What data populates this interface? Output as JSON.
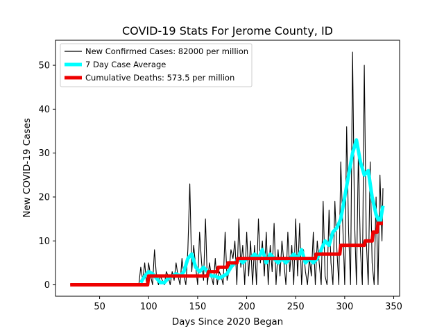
{
  "chart_data": {
    "type": "line",
    "title": "COVID-19 Stats For Jerome County, ID",
    "xlabel": "Days Since 2020 Began",
    "ylabel": "New COVID-19 Cases",
    "xlim": [
      5,
      356
    ],
    "ylim": [
      -2.6,
      55.7
    ],
    "xticks": [
      50,
      100,
      150,
      200,
      250,
      300,
      350
    ],
    "yticks": [
      0,
      10,
      20,
      30,
      40,
      50
    ],
    "grid": false,
    "legend_position": "top-left",
    "series": [
      {
        "name": "New Confirmed Cases: 82000 per million",
        "color": "#000000",
        "x": [
          20,
          40,
          60,
          80,
          90,
          92,
          94,
          96,
          98,
          100,
          102,
          104,
          106,
          108,
          110,
          112,
          114,
          116,
          118,
          120,
          122,
          124,
          126,
          128,
          130,
          132,
          134,
          136,
          138,
          140,
          142,
          144,
          146,
          148,
          150,
          152,
          154,
          156,
          158,
          160,
          162,
          164,
          166,
          168,
          170,
          172,
          174,
          176,
          178,
          180,
          182,
          184,
          186,
          188,
          190,
          192,
          194,
          196,
          198,
          200,
          202,
          204,
          206,
          208,
          210,
          212,
          214,
          216,
          218,
          220,
          222,
          224,
          226,
          228,
          230,
          232,
          234,
          236,
          238,
          240,
          242,
          244,
          246,
          248,
          250,
          252,
          254,
          256,
          258,
          260,
          262,
          264,
          266,
          268,
          270,
          272,
          274,
          276,
          278,
          280,
          282,
          284,
          286,
          288,
          290,
          292,
          294,
          296,
          298,
          300,
          302,
          304,
          306,
          308,
          310,
          312,
          314,
          316,
          318,
          320,
          322,
          324,
          326,
          328,
          330,
          332,
          334,
          336,
          338,
          339
        ],
        "y": [
          0,
          0,
          0,
          0,
          0,
          4,
          1,
          5,
          0,
          5,
          2,
          0,
          8,
          2,
          0,
          2,
          1,
          0,
          3,
          2,
          0,
          3,
          1,
          5,
          2,
          0,
          6,
          2,
          0,
          8,
          23,
          3,
          9,
          4,
          0,
          12,
          5,
          1,
          15,
          0,
          5,
          2,
          0,
          6,
          0,
          3,
          2,
          0,
          12,
          1,
          3,
          8,
          6,
          10,
          0,
          15,
          4,
          9,
          0,
          12,
          2,
          10,
          0,
          9,
          0,
          15,
          5,
          10,
          2,
          12,
          0,
          9,
          3,
          14,
          0,
          8,
          2,
          10,
          5,
          0,
          12,
          3,
          9,
          0,
          15,
          2,
          14,
          0,
          8,
          3,
          0,
          6,
          2,
          12,
          0,
          10,
          5,
          0,
          19,
          2,
          0,
          17,
          5,
          0,
          19,
          8,
          0,
          28,
          14,
          0,
          36,
          12,
          0,
          53,
          15,
          0,
          30,
          8,
          0,
          50,
          10,
          0,
          28,
          5,
          0,
          20,
          0,
          25,
          10,
          22
        ]
      },
      {
        "name": "7 Day Case Average",
        "color": "#00ffff",
        "x": [
          92,
          96,
          100,
          104,
          108,
          112,
          116,
          120,
          124,
          128,
          132,
          136,
          140,
          144,
          148,
          152,
          156,
          160,
          164,
          168,
          172,
          176,
          180,
          184,
          188,
          192,
          196,
          200,
          204,
          208,
          212,
          216,
          220,
          224,
          228,
          232,
          236,
          240,
          244,
          248,
          252,
          256,
          260,
          264,
          268,
          272,
          276,
          280,
          284,
          288,
          292,
          296,
          300,
          304,
          308,
          312,
          316,
          320,
          324,
          328,
          332,
          336,
          339
        ],
        "y": [
          0.5,
          2,
          3,
          2.5,
          1.5,
          0.5,
          0.5,
          1.5,
          2,
          2.5,
          2,
          3,
          6,
          7,
          4,
          3,
          4,
          3,
          2,
          2,
          1.5,
          2,
          2.5,
          4,
          5,
          6,
          5,
          6,
          6,
          7,
          6,
          8,
          5,
          7,
          6,
          5,
          6,
          5,
          6,
          7,
          6,
          8,
          5,
          6,
          5,
          6,
          8,
          10,
          9,
          12,
          13,
          15,
          20,
          25,
          30,
          33,
          28,
          25,
          26,
          20,
          16,
          14,
          18
        ]
      },
      {
        "name": "Cumulative Deaths: 573.5 per million",
        "color": "#ee0000",
        "x": [
          20,
          99,
          100,
          160,
          161,
          170,
          171,
          180,
          181,
          190,
          191,
          255,
          256,
          270,
          271,
          295,
          296,
          320,
          321,
          328,
          329,
          333,
          334,
          339
        ],
        "y": [
          0,
          0,
          2,
          2,
          3,
          3,
          4,
          4,
          5,
          5,
          6,
          6,
          6,
          6,
          7,
          7,
          9,
          9,
          10,
          10,
          12,
          12,
          14,
          14
        ]
      }
    ]
  }
}
